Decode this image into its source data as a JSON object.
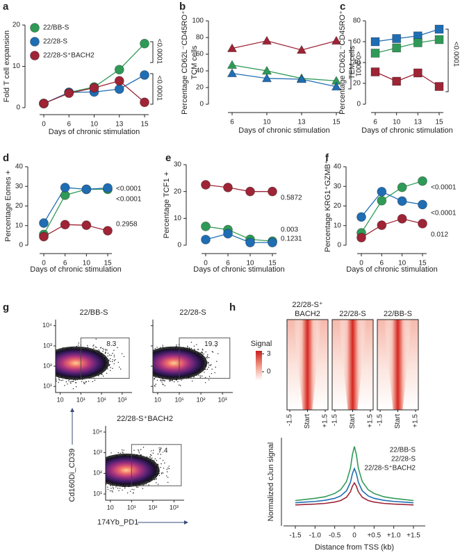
{
  "chart_data": [
    {
      "label": "a",
      "type": "line",
      "categories": [
        0,
        6,
        10,
        13,
        15
      ],
      "xlabel": "Days of chronic stimulation",
      "ylabel": [
        "Fold T cell expansion"
      ],
      "ylim": [
        0,
        20
      ],
      "yticks": [
        0,
        10,
        20
      ],
      "marker": "circle",
      "legend": true,
      "series": [
        {
          "name": "22/BB-S",
          "color": "#2f9a57",
          "values": [
            1,
            3.7,
            5,
            9.2,
            15.5
          ]
        },
        {
          "name": "22/28-S",
          "color": "#1f6db3",
          "values": [
            1,
            3.7,
            3.8,
            4.5,
            7.9
          ]
        },
        {
          "name": "22/28-S⁺BACH2",
          "color": "#9e2436",
          "values": [
            1,
            3.5,
            4.8,
            6.5,
            1.3
          ]
        }
      ],
      "annotations": [
        {
          "text": "<0.0001",
          "color": "#222222"
        },
        {
          "text": "<0.0001",
          "color": "#222222"
        }
      ]
    },
    {
      "label": "b",
      "type": "line",
      "categories": [
        6,
        10,
        13,
        15
      ],
      "xlabel": "Days of chronic stimulation",
      "ylabel": [
        "Percentage CD62L⁻CD45RO⁺",
        "TCM cells"
      ],
      "ylim": [
        0,
        100
      ],
      "yticks": [
        0,
        20,
        40,
        60,
        80,
        100
      ],
      "marker": "triangle",
      "series": [
        {
          "color": "#9e2436",
          "values": [
            67,
            76,
            65,
            76
          ]
        },
        {
          "color": "#2f9a57",
          "values": [
            47,
            40,
            31,
            28
          ]
        },
        {
          "color": "#1f6db3",
          "values": [
            37,
            31,
            30,
            21
          ]
        }
      ],
      "annotations": [
        {
          "text": "<0.0001",
          "color": "#222222"
        }
      ]
    },
    {
      "label": "c",
      "type": "line",
      "categories": [
        6,
        10,
        13,
        15
      ],
      "xlabel": "Days of chronic stimulation",
      "ylabel": [
        "Percentage CD62L⁻CD45RO⁺",
        "TEM cells"
      ],
      "ylim": [
        0,
        80
      ],
      "yticks": [
        0,
        20,
        40,
        60,
        80
      ],
      "marker": "square",
      "series": [
        {
          "color": "#1f6db3",
          "values": [
            60,
            63,
            65.5,
            72
          ]
        },
        {
          "color": "#2f9a57",
          "values": [
            49,
            54,
            59,
            62
          ]
        },
        {
          "color": "#9e2436",
          "values": [
            31,
            22,
            30,
            17
          ]
        }
      ],
      "annotations": [
        {
          "text": "<0.0001",
          "color": "#222222"
        }
      ]
    },
    {
      "label": "d",
      "type": "line",
      "categories": [
        0,
        6,
        10,
        15
      ],
      "xlabel": "Days of chronic stimulation",
      "ylabel": [
        "Percentage Eomes +"
      ],
      "ylim": [
        0,
        40
      ],
      "yticks": [
        0,
        10,
        20,
        30,
        40
      ],
      "marker": "circle",
      "series": [
        {
          "color": "#2f9a57",
          "values": [
            5.5,
            25.5,
            28.5,
            28.5
          ]
        },
        {
          "color": "#1f6db3",
          "values": [
            11.3,
            29.4,
            28.5,
            29.2
          ]
        },
        {
          "color": "#9e2436",
          "values": [
            4.4,
            10.5,
            10.2,
            7.4
          ]
        }
      ],
      "annotations": [
        {
          "text": "<0.0001",
          "color": "#2f9a57"
        },
        {
          "text": "<0.0001",
          "color": "#1f6db3"
        },
        {
          "text": "0.2958",
          "color": "#9e2436"
        }
      ]
    },
    {
      "label": "e",
      "type": "line",
      "categories": [
        0,
        6,
        10,
        15
      ],
      "xlabel": "Days of chronic stimulation",
      "ylabel": [
        "Percentage TCF1 +"
      ],
      "ylim": [
        0,
        30
      ],
      "yticks": [
        0,
        10,
        20,
        30
      ],
      "marker": "circle",
      "series": [
        {
          "color": "#9e2436",
          "values": [
            22.5,
            21.5,
            20,
            20
          ]
        },
        {
          "color": "#2f9a57",
          "values": [
            7,
            5.8,
            2.2,
            1.5
          ]
        },
        {
          "color": "#1f6db3",
          "values": [
            2.1,
            4.3,
            1,
            1
          ]
        }
      ],
      "annotations": [
        {
          "text": "0.5872",
          "color": "#9e2436"
        },
        {
          "text": "0.003",
          "color": "#2f9a57"
        },
        {
          "text": "0.1231",
          "color": "#1f6db3"
        }
      ]
    },
    {
      "label": "f",
      "type": "line",
      "categories": [
        0,
        6,
        10,
        15
      ],
      "xlabel": "Days of chronic stimulation",
      "ylabel": [
        "Percentage KRG1⁺GZMB⁺"
      ],
      "ylim": [
        0,
        40
      ],
      "yticks": [
        0,
        10,
        20,
        30,
        40
      ],
      "marker": "circle",
      "series": [
        {
          "color": "#2f9a57",
          "values": [
            6.3,
            22.7,
            29.5,
            32.7
          ]
        },
        {
          "color": "#1f6db3",
          "values": [
            14.4,
            27.3,
            22.5,
            20.7
          ]
        },
        {
          "color": "#9e2436",
          "values": [
            3.9,
            10.2,
            13.5,
            11
          ]
        }
      ],
      "annotations": [
        {
          "text": "<0.0001",
          "color": "#2f9a57"
        },
        {
          "text": "<0.0001",
          "color": "#1f6db3"
        },
        {
          "text": "0.012",
          "color": "#9e2436"
        }
      ]
    },
    {
      "label": "g",
      "type": "flow",
      "xlabel": "174Yb_PD1",
      "ylabel": "Cd160Di_CD39",
      "xscale": "log",
      "yscale": "log",
      "xlim": [
        0.6,
        3000
      ],
      "ylim": [
        5,
        20000
      ],
      "xticks": [
        {
          "value": 1,
          "label": "10"
        },
        {
          "value": 10,
          "label": "10¹"
        },
        {
          "value": 100,
          "label": "10²"
        },
        {
          "value": 1000,
          "label": "10³"
        }
      ],
      "yticks": [
        {
          "value": 10,
          "label": "10¹"
        },
        {
          "value": 100,
          "label": "10²"
        },
        {
          "value": 1000,
          "label": "10³"
        },
        {
          "value": 10000,
          "label": "10⁴"
        }
      ],
      "plots": [
        {
          "title": "22/BB-S",
          "color": "#2f9a57",
          "gate_value": 8.3
        },
        {
          "title": "22/28-S",
          "color": "#1f6db3",
          "gate_value": 19.3
        },
        {
          "title": "22/28-S⁺BACH2",
          "color": "#9e2436",
          "gate_value": 7.4
        }
      ]
    },
    {
      "label": "h",
      "type": "heatmap",
      "xlim": [
        -1.5,
        1.5
      ],
      "xticks": [
        -1.5,
        {
          "value": 0,
          "label": "Start"
        },
        {
          "value": 1.5,
          "label": "+1.5"
        }
      ],
      "colorbar": {
        "title": "Signal",
        "lim": [
          -1.5,
          3.5
        ],
        "ticks": [
          0,
          3
        ]
      },
      "tracks": [
        {
          "title": [
            "22/28-S⁺",
            "BACH2"
          ],
          "color": "#9e2436"
        },
        {
          "title": [
            "22/28-S"
          ],
          "color": "#1f6db3"
        },
        {
          "title": [
            "22/BB-S"
          ],
          "color": "#2f9a57"
        }
      ]
    },
    {
      "type": "line",
      "xlabel": "Distance from TSS (kb)",
      "ylabel": [
        "Normalized cJun signal"
      ],
      "legend": true,
      "x": [
        -1.5,
        -1.25,
        -1,
        -0.75,
        -0.5,
        -0.35,
        -0.2,
        -0.1,
        -0.05,
        0,
        0.05,
        0.1,
        0.2,
        0.35,
        0.5,
        0.75,
        1,
        1.25,
        1.5
      ],
      "xlim": [
        -1.8,
        1.8
      ],
      "xticks": [
        -1.5,
        {
          "value": -1,
          "label": "-1.0"
        },
        -0.5,
        0,
        {
          "value": 0.5,
          "label": "+0.5"
        },
        {
          "value": 1,
          "label": "+1.0"
        },
        {
          "value": 1.5,
          "label": "+1.5"
        }
      ],
      "ylim": [
        0,
        4
      ],
      "series": [
        {
          "name": "22/BB-S",
          "color": "#2f9a57",
          "values": [
            1.15,
            1.2,
            1.25,
            1.32,
            1.47,
            1.64,
            2.01,
            2.62,
            3.23,
            3.6,
            3.23,
            2.62,
            2.01,
            1.64,
            1.47,
            1.32,
            1.25,
            1.2,
            1.15
          ]
        },
        {
          "name": "22/28-S",
          "color": "#1f6db3",
          "values": [
            1.05,
            1.08,
            1.11,
            1.16,
            1.25,
            1.36,
            1.59,
            1.98,
            2.37,
            2.6,
            2.37,
            1.98,
            1.59,
            1.36,
            1.25,
            1.16,
            1.11,
            1.08,
            1.05
          ]
        },
        {
          "name": "22/28-S⁺BACH2",
          "color": "#9e2436",
          "values": [
            0.95,
            0.97,
            0.99,
            1.02,
            1.08,
            1.15,
            1.3,
            1.55,
            1.8,
            1.95,
            1.8,
            1.55,
            1.3,
            1.15,
            1.08,
            1.02,
            0.99,
            0.97,
            0.95
          ]
        }
      ]
    }
  ]
}
